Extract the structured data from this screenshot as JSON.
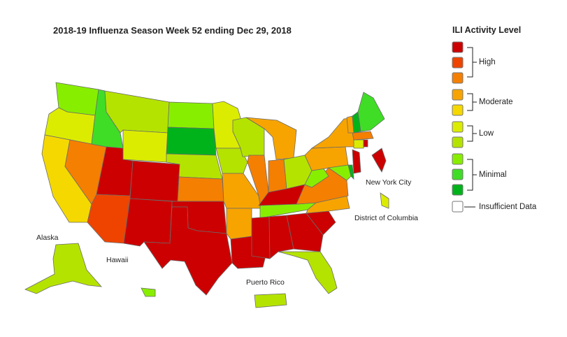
{
  "title": "2018-19 Influenza Season Week 52 ending Dec 29, 2018",
  "legend": {
    "title": "ILI Activity Level",
    "groups": [
      "High",
      "Moderate",
      "Low",
      "Minimal"
    ],
    "insufficient": "Insufficient Data",
    "levels": [
      {
        "level": 10,
        "color": "#cc0000"
      },
      {
        "level": 9,
        "color": "#ee4400"
      },
      {
        "level": 8,
        "color": "#f57f00"
      },
      {
        "level": 7,
        "color": "#f7a400"
      },
      {
        "level": 6,
        "color": "#f5d800"
      },
      {
        "level": 5,
        "color": "#dcec00"
      },
      {
        "level": 4,
        "color": "#b5e300"
      },
      {
        "level": 3,
        "color": "#88ee00"
      },
      {
        "level": 2,
        "color": "#3fdd26"
      },
      {
        "level": 1,
        "color": "#00b31a"
      }
    ],
    "insufficient_color": "#ffffff"
  },
  "labels": {
    "alaska": "Alaska",
    "hawaii": "Hawaii",
    "puerto_rico": "Puerto Rico",
    "new_york_city": "New York City",
    "dc": "District of Columbia"
  },
  "state_levels": {
    "WA": 3,
    "OR": 5,
    "CA": 6,
    "NV": 8,
    "ID": 2,
    "MT": 4,
    "WY": 5,
    "UT": 10,
    "AZ": 9,
    "CO": 10,
    "NM": 10,
    "ND": 3,
    "SD": 1,
    "NE": 4,
    "KS": 8,
    "OK": 10,
    "TX": 10,
    "MN": 5,
    "IA": 4,
    "MO": 7,
    "AR": 7,
    "LA": 10,
    "WI": 4,
    "IL": 8,
    "MI": 7,
    "IN": 8,
    "OH": 4,
    "KY": 10,
    "TN": 3,
    "MS": 10,
    "AL": 10,
    "GA": 10,
    "FL": 4,
    "SC": 10,
    "NC": 7,
    "VA": 8,
    "WV": 3,
    "PA": 7,
    "NY": 7,
    "MD": 3,
    "DE": 1,
    "NJ": 10,
    "CT": 5,
    "RI": 10,
    "MA": 8,
    "VT": 7,
    "NH": 1,
    "ME": 2,
    "AK": 4,
    "HI": 3,
    "PR": 4,
    "NYC": 10,
    "DC": 5
  }
}
